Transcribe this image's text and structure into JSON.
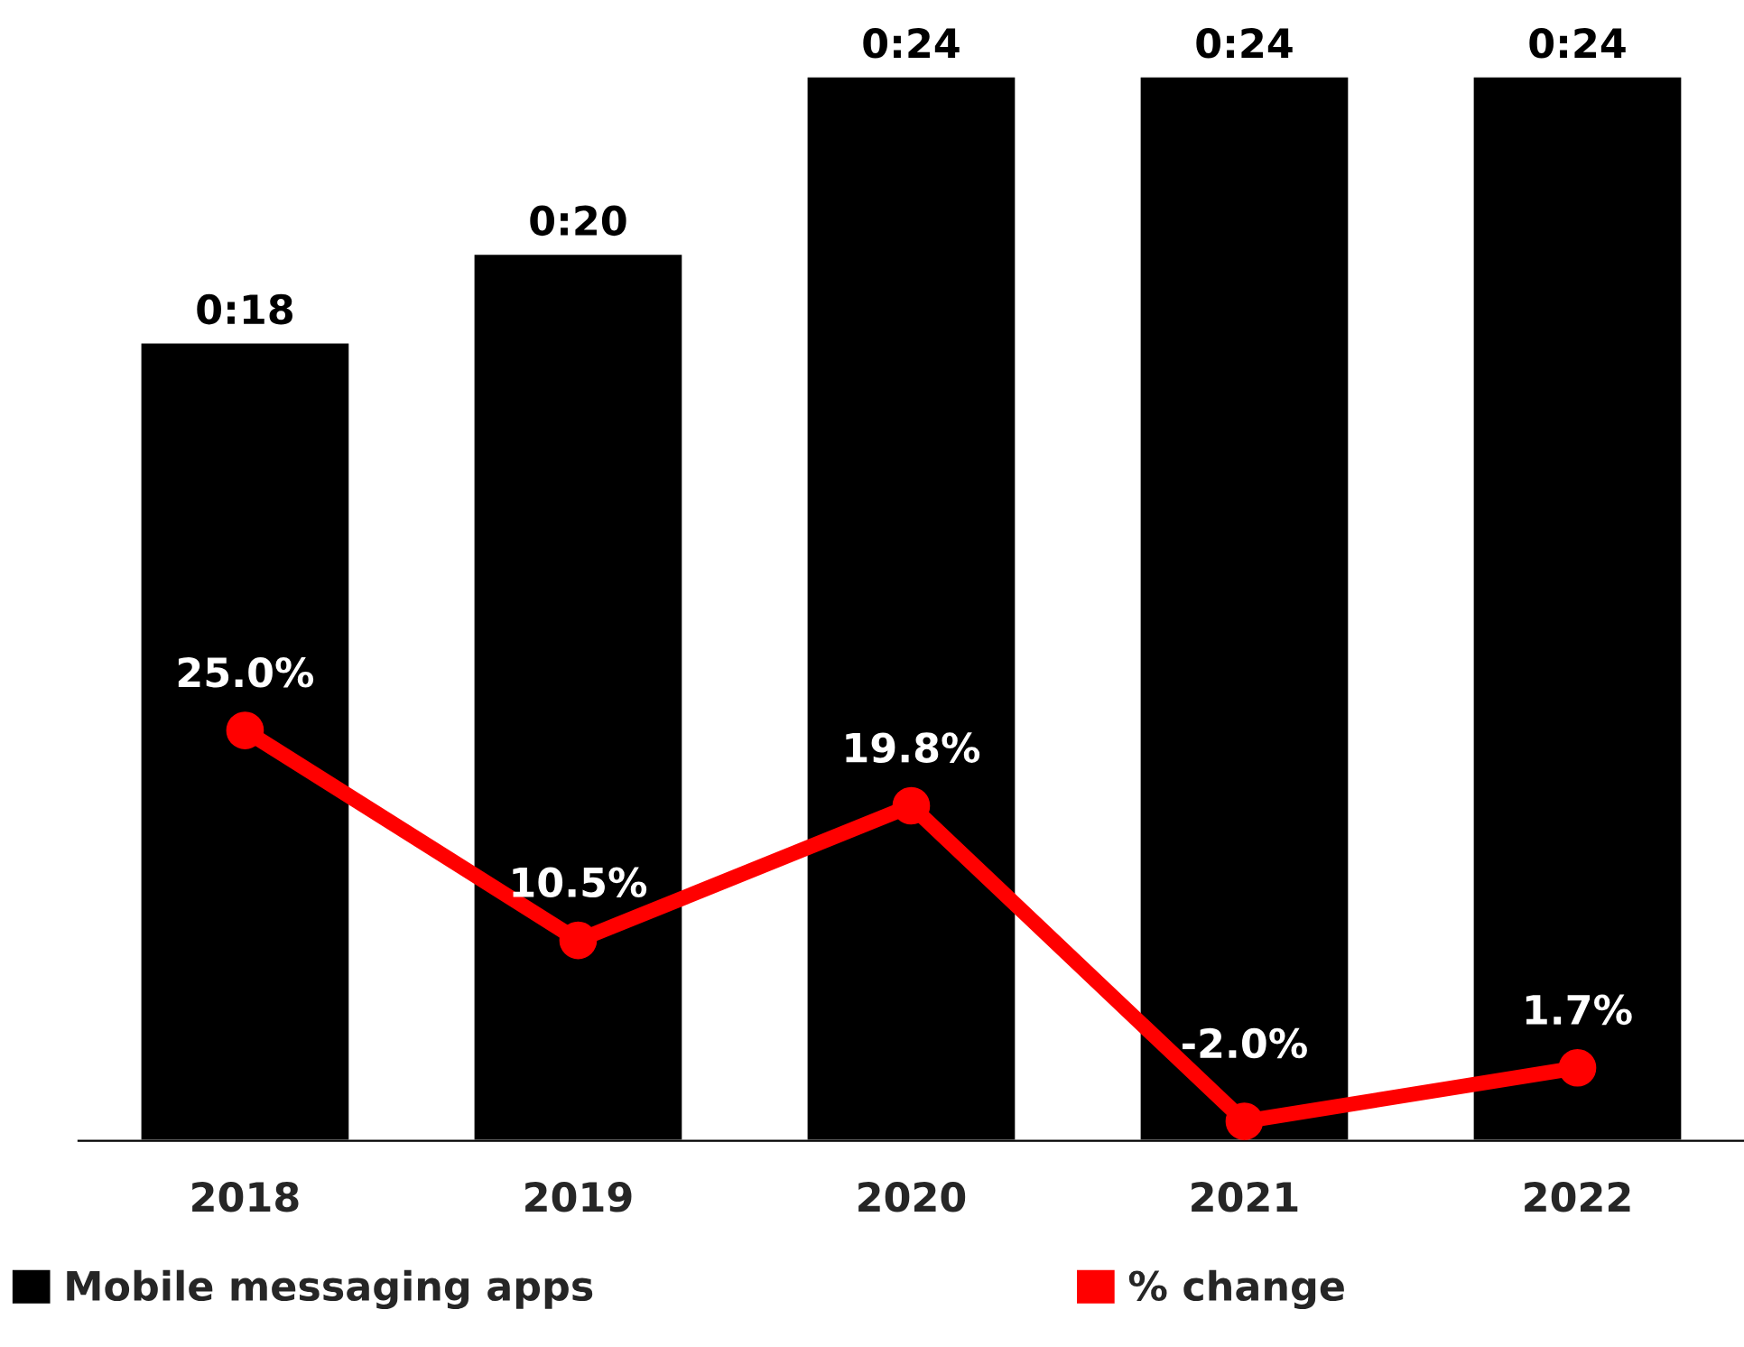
{
  "chart_data": {
    "type": "bar",
    "categories": [
      "2018",
      "2019",
      "2020",
      "2021",
      "2022"
    ],
    "series": [
      {
        "name": "Mobile messaging apps",
        "color": "#000000",
        "values": [
          18,
          20,
          24,
          24,
          24
        ],
        "value_labels": [
          "0:18",
          "0:20",
          "0:24",
          "0:24",
          "0:24"
        ]
      },
      {
        "name": "% change",
        "type": "line",
        "axis": "y2",
        "color": "#ff0000",
        "values": [
          25.0,
          10.5,
          19.8,
          -2.0,
          1.7
        ],
        "value_labels": [
          "25.0%",
          "10.5%",
          "19.8%",
          "-2.0%",
          "1.7%"
        ]
      }
    ],
    "tick_labels": "x",
    "grid": false,
    "legend": "bottom",
    "marker": "circle",
    "line_style": "solid"
  }
}
